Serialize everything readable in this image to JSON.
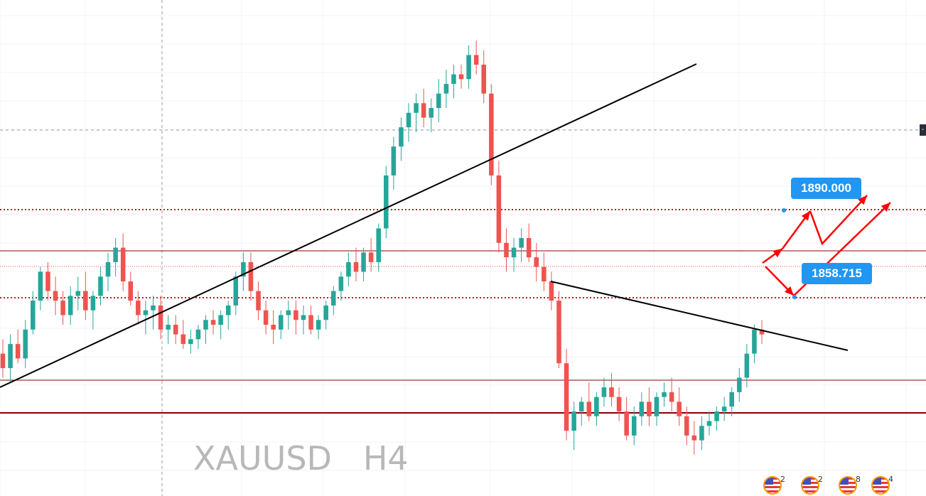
{
  "chart_data": {
    "type": "candlestick",
    "symbol": "XAUUSD",
    "timeframe": "H4",
    "y_range": [
      1832,
      1922
    ],
    "candles": [
      [
        1853,
        1856,
        1848,
        1850
      ],
      [
        1850,
        1857,
        1847,
        1855
      ],
      [
        1855,
        1858,
        1851,
        1852
      ],
      [
        1852,
        1860,
        1850,
        1858
      ],
      [
        1858,
        1866,
        1857,
        1864
      ],
      [
        1864,
        1871,
        1862,
        1870
      ],
      [
        1870,
        1872,
        1864,
        1866
      ],
      [
        1866,
        1869,
        1861,
        1864
      ],
      [
        1864,
        1866,
        1859,
        1861
      ],
      [
        1861,
        1867,
        1859,
        1865
      ],
      [
        1865,
        1869,
        1862,
        1866
      ],
      [
        1866,
        1870,
        1860,
        1862
      ],
      [
        1862,
        1866,
        1858,
        1865
      ],
      [
        1865,
        1871,
        1863,
        1869
      ],
      [
        1869,
        1874,
        1866,
        1872
      ],
      [
        1872,
        1877,
        1869,
        1875
      ],
      [
        1875,
        1878,
        1866,
        1868
      ],
      [
        1868,
        1870,
        1863,
        1864
      ],
      [
        1864,
        1866,
        1859,
        1861
      ],
      [
        1861,
        1864,
        1857,
        1862
      ],
      [
        1862,
        1865,
        1858,
        1863
      ],
      [
        1863,
        1865,
        1856,
        1858
      ],
      [
        1858,
        1861,
        1855,
        1859
      ],
      [
        1859,
        1861,
        1855,
        1857
      ],
      [
        1857,
        1860,
        1854,
        1855
      ],
      [
        1855,
        1858,
        1853,
        1856
      ],
      [
        1856,
        1859,
        1854,
        1858
      ],
      [
        1858,
        1861,
        1855,
        1860
      ],
      [
        1860,
        1862,
        1857,
        1859
      ],
      [
        1859,
        1862,
        1856,
        1861
      ],
      [
        1861,
        1864,
        1858,
        1863
      ],
      [
        1863,
        1870,
        1861,
        1869
      ],
      [
        1869,
        1874,
        1866,
        1872
      ],
      [
        1872,
        1874,
        1864,
        1866
      ],
      [
        1866,
        1868,
        1860,
        1862
      ],
      [
        1862,
        1864,
        1857,
        1859
      ],
      [
        1859,
        1862,
        1855,
        1858
      ],
      [
        1858,
        1862,
        1856,
        1861
      ],
      [
        1861,
        1864,
        1858,
        1862
      ],
      [
        1862,
        1864,
        1857,
        1860
      ],
      [
        1860,
        1863,
        1857,
        1861
      ],
      [
        1861,
        1863,
        1857,
        1858
      ],
      [
        1858,
        1861,
        1856,
        1860
      ],
      [
        1860,
        1864,
        1858,
        1863
      ],
      [
        1863,
        1867,
        1861,
        1866
      ],
      [
        1866,
        1870,
        1864,
        1869
      ],
      [
        1869,
        1874,
        1867,
        1872
      ],
      [
        1872,
        1875,
        1868,
        1870
      ],
      [
        1870,
        1875,
        1868,
        1874
      ],
      [
        1874,
        1877,
        1870,
        1872
      ],
      [
        1872,
        1880,
        1870,
        1879
      ],
      [
        1879,
        1892,
        1877,
        1890
      ],
      [
        1890,
        1898,
        1887,
        1896
      ],
      [
        1896,
        1902,
        1893,
        1900
      ],
      [
        1900,
        1905,
        1897,
        1903
      ],
      [
        1903,
        1907,
        1899,
        1905
      ],
      [
        1905,
        1908,
        1900,
        1902
      ],
      [
        1902,
        1906,
        1899,
        1904
      ],
      [
        1904,
        1910,
        1901,
        1907
      ],
      [
        1907,
        1912,
        1904,
        1909
      ],
      [
        1909,
        1913,
        1906,
        1911
      ],
      [
        1911,
        1913,
        1908,
        1910
      ],
      [
        1910,
        1917,
        1908,
        1915
      ],
      [
        1915,
        1918,
        1911,
        1913
      ],
      [
        1913,
        1916,
        1905,
        1907
      ],
      [
        1907,
        1909,
        1888,
        1890
      ],
      [
        1890,
        1893,
        1874,
        1876
      ],
      [
        1876,
        1879,
        1870,
        1873
      ],
      [
        1873,
        1877,
        1870,
        1875
      ],
      [
        1875,
        1879,
        1872,
        1877
      ],
      [
        1877,
        1880,
        1872,
        1873
      ],
      [
        1873,
        1876,
        1868,
        1871
      ],
      [
        1871,
        1874,
        1866,
        1868
      ],
      [
        1868,
        1870,
        1862,
        1864
      ],
      [
        1864,
        1866,
        1850,
        1851
      ],
      [
        1851,
        1854,
        1835,
        1837
      ],
      [
        1837,
        1843,
        1833,
        1841
      ],
      [
        1841,
        1844,
        1838,
        1843
      ],
      [
        1843,
        1847,
        1839,
        1840
      ],
      [
        1840,
        1845,
        1838,
        1844
      ],
      [
        1844,
        1848,
        1842,
        1846
      ],
      [
        1846,
        1849,
        1842,
        1844
      ],
      [
        1844,
        1846,
        1839,
        1841
      ],
      [
        1841,
        1844,
        1835,
        1836
      ],
      [
        1836,
        1842,
        1834,
        1840
      ],
      [
        1840,
        1845,
        1838,
        1843
      ],
      [
        1843,
        1846,
        1838,
        1840
      ],
      [
        1840,
        1845,
        1838,
        1844
      ],
      [
        1844,
        1847,
        1842,
        1845
      ],
      [
        1845,
        1848,
        1841,
        1843
      ],
      [
        1843,
        1846,
        1838,
        1840
      ],
      [
        1840,
        1842,
        1834,
        1836
      ],
      [
        1836,
        1839,
        1832,
        1835
      ],
      [
        1835,
        1840,
        1833,
        1838
      ],
      [
        1838,
        1841,
        1836,
        1839
      ],
      [
        1839,
        1842,
        1837,
        1841
      ],
      [
        1841,
        1844,
        1839,
        1842
      ],
      [
        1842,
        1846,
        1840,
        1845
      ],
      [
        1845,
        1850,
        1843,
        1848
      ],
      [
        1848,
        1855,
        1846,
        1853
      ],
      [
        1853,
        1859,
        1851,
        1858
      ],
      [
        1858,
        1860,
        1855,
        1857
      ]
    ],
    "horizontal_levels": [
      1890.0,
      1858.715
    ],
    "labels": [
      "1890.000",
      "1858.715"
    ]
  },
  "title": {
    "symbol": "XAUUSD",
    "timeframe": "H4"
  },
  "price_tags": {
    "target_upper": "1890.000",
    "target_lower": "1858.715"
  },
  "event_badges": [
    {
      "icon": "us-flag-icon",
      "text": "2"
    },
    {
      "icon": "us-flag-icon",
      "text": "2"
    },
    {
      "icon": "us-flag-icon",
      "text": "8"
    },
    {
      "icon": "us-flag-icon",
      "text": "4"
    }
  ],
  "colors": {
    "bull": "#26a69a",
    "bear": "#ef5350",
    "level": "#8b0000",
    "dotted": "#b22222",
    "arrow": "#ff0000",
    "label_bg": "#2196f3",
    "trend": "#000000"
  }
}
